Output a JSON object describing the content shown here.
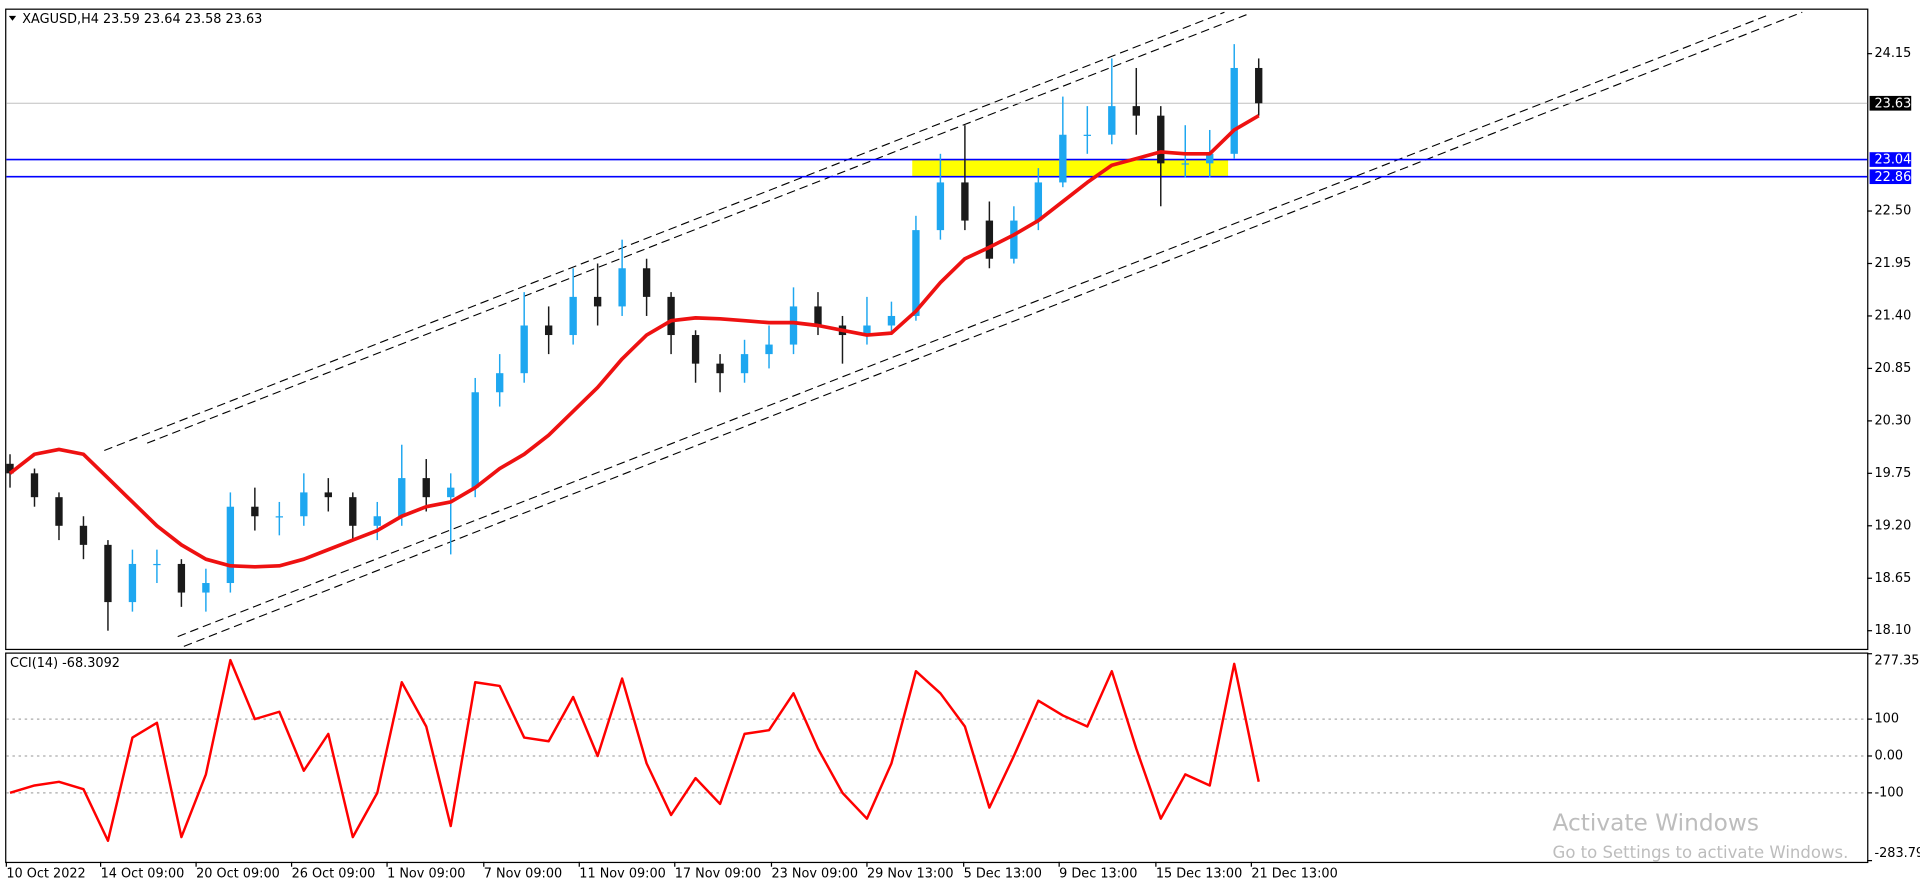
{
  "header": {
    "title": "XAGUSD,H4  23.59 23.64 23.58 23.63"
  },
  "chart_data": [
    {
      "type": "candlestick",
      "up_color": "#1ea7f0",
      "down_color": "#1a1a1a",
      "open": [
        19.85,
        19.75,
        19.5,
        19.2,
        19.0,
        18.4,
        18.8,
        18.8,
        18.5,
        18.6,
        19.4,
        19.3,
        19.3,
        19.55,
        19.5,
        19.2,
        19.3,
        19.7,
        19.5,
        19.6,
        20.6,
        20.8,
        21.3,
        21.2,
        21.6,
        21.5,
        21.9,
        21.6,
        21.2,
        20.9,
        20.8,
        21.0,
        21.1,
        21.5,
        21.3,
        21.2,
        21.3,
        21.4,
        22.3,
        22.8,
        22.4,
        22.0,
        22.4,
        22.8,
        23.3,
        23.3,
        23.6,
        23.5,
        23.0,
        23.0,
        23.1,
        24.0
      ],
      "high": [
        19.95,
        19.8,
        19.55,
        19.3,
        19.05,
        18.95,
        18.95,
        18.85,
        18.75,
        19.55,
        19.6,
        19.45,
        19.75,
        19.7,
        19.55,
        19.45,
        20.05,
        19.9,
        19.75,
        20.75,
        21.0,
        21.65,
        21.5,
        21.9,
        21.95,
        22.2,
        22.0,
        21.65,
        21.25,
        21.0,
        21.15,
        21.3,
        21.7,
        21.65,
        21.4,
        21.6,
        21.55,
        22.45,
        23.1,
        23.4,
        22.6,
        22.55,
        22.95,
        23.7,
        23.6,
        24.1,
        24.0,
        23.6,
        23.4,
        23.35,
        24.25,
        24.1
      ],
      "low": [
        19.6,
        19.4,
        19.05,
        18.85,
        18.1,
        18.3,
        18.6,
        18.35,
        18.3,
        18.5,
        19.15,
        19.1,
        19.2,
        19.35,
        19.05,
        19.05,
        19.2,
        19.35,
        18.9,
        19.5,
        20.45,
        20.7,
        21.0,
        21.1,
        21.3,
        21.4,
        21.4,
        21.0,
        20.7,
        20.6,
        20.7,
        20.85,
        21.0,
        21.2,
        20.9,
        21.1,
        21.2,
        21.35,
        22.2,
        22.3,
        21.9,
        21.95,
        22.3,
        22.75,
        23.1,
        23.2,
        23.3,
        22.55,
        22.85,
        22.85,
        23.05,
        23.5
      ],
      "close": [
        19.75,
        19.5,
        19.2,
        19.0,
        18.4,
        18.8,
        18.8,
        18.5,
        18.6,
        19.4,
        19.3,
        19.3,
        19.55,
        19.5,
        19.2,
        19.3,
        19.7,
        19.5,
        19.6,
        20.6,
        20.8,
        21.3,
        21.2,
        21.6,
        21.5,
        21.9,
        21.6,
        21.2,
        20.9,
        20.8,
        21.0,
        21.1,
        21.5,
        21.3,
        21.2,
        21.3,
        21.4,
        22.3,
        22.8,
        22.4,
        22.0,
        22.4,
        22.8,
        23.3,
        23.3,
        23.6,
        23.5,
        23.0,
        23.0,
        23.1,
        24.0,
        23.63
      ],
      "moving_average": {
        "color": "#ee1111",
        "values": [
          19.75,
          19.95,
          20.0,
          19.95,
          19.7,
          19.45,
          19.2,
          19.0,
          18.85,
          18.78,
          18.77,
          18.78,
          18.85,
          18.95,
          19.05,
          19.15,
          19.3,
          19.4,
          19.45,
          19.6,
          19.8,
          19.95,
          20.15,
          20.4,
          20.65,
          20.95,
          21.2,
          21.35,
          21.38,
          21.37,
          21.35,
          21.33,
          21.33,
          21.3,
          21.25,
          21.2,
          21.22,
          21.45,
          21.75,
          22.0,
          22.12,
          22.25,
          22.4,
          22.6,
          22.8,
          22.98,
          23.05,
          23.12,
          23.1,
          23.1,
          23.35,
          23.5
        ]
      },
      "price_lines": [
        {
          "value": 23.63,
          "color": "#c0c0c0",
          "label_bg": "#000000"
        },
        {
          "value": 23.04,
          "color": "#0000ff",
          "label_bg": "#0000ff"
        },
        {
          "value": 22.86,
          "color": "#0000ff",
          "label_bg": "#0000ff"
        }
      ],
      "zone": {
        "from": 22.86,
        "to": 23.04,
        "color": "#ffff00"
      },
      "xlim": [
        -0.15,
        75.85
      ],
      "ylim": [
        17.91,
        24.61
      ],
      "yticks": [
        24.15,
        {
          "value": 22.5,
          "label": "22.50"
        },
        21.95,
        {
          "value": 21.4,
          "label": "21.40"
        },
        20.85,
        {
          "value": 20.3,
          "label": "20.30"
        },
        19.75,
        {
          "value": 19.2,
          "label": "19.20"
        },
        18.65,
        {
          "value": 18.1,
          "label": "18.10"
        }
      ],
      "xticks": [
        {
          "value": -0.15,
          "label": "10 Oct 2022"
        },
        {
          "value": 3.7,
          "label": "14 Oct 09:00"
        },
        {
          "value": 7.6,
          "label": "20 Oct 09:00"
        },
        {
          "value": 11.5,
          "label": "26 Oct 09:00"
        },
        {
          "value": 15.4,
          "label": "1 Nov 09:00"
        },
        {
          "value": 19.35,
          "label": "7 Nov 09:00"
        },
        {
          "value": 23.25,
          "label": "11 Nov 09:00"
        },
        {
          "value": 27.15,
          "label": "17 Nov 09:00"
        },
        {
          "value": 31.1,
          "label": "23 Nov 09:00"
        },
        {
          "value": 35.0,
          "label": "29 Nov 13:00"
        },
        {
          "value": 38.95,
          "label": "5 Dec 13:00"
        },
        {
          "value": 42.85,
          "label": "9 Dec 13:00"
        },
        {
          "value": 46.8,
          "label": "15 Dec 13:00"
        },
        {
          "value": 50.7,
          "label": "21 Dec 13:00"
        }
      ]
    },
    {
      "type": "line",
      "title": "CCI(14) -68.3092",
      "color": "#ff0000",
      "values": [
        -100,
        -80,
        -70,
        -90,
        -230,
        50,
        90,
        -220,
        -50,
        260,
        100,
        120,
        -40,
        60,
        -220,
        -100,
        200,
        80,
        -190,
        200,
        190,
        50,
        40,
        160,
        0,
        210,
        -20,
        -160,
        -60,
        -130,
        60,
        70,
        170,
        20,
        -100,
        -170,
        -20,
        230,
        170,
        80,
        -140,
        0,
        150,
        110,
        80,
        230,
        20,
        -170,
        -50,
        -80,
        250,
        -70
      ],
      "xlim": [
        -0.15,
        75.85
      ],
      "ylim": [
        -283.796,
        277.357
      ],
      "yticks": [
        277.357,
        100,
        {
          "value": 0,
          "label": "0.00"
        },
        -100,
        -283.796
      ]
    }
  ],
  "watermark": {
    "title": "Activate Windows",
    "subtitle": "Go to Settings to activate Windows."
  }
}
